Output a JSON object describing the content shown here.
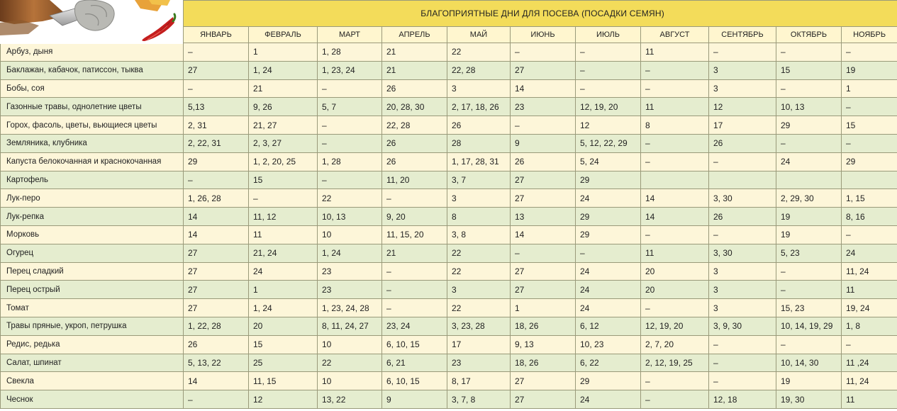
{
  "header": {
    "title": "БЛАГОПРИЯТНЫЕ ДНИ ДЛЯ ПОСЕВА (ПОСАДКИ СЕМЯН)",
    "months": [
      "ЯНВАРЬ",
      "ФЕВРАЛЬ",
      "МАРТ",
      "АПРЕЛЬ",
      "МАЙ",
      "ИЮНЬ",
      "ИЮЛЬ",
      "АВГУСТ",
      "СЕНТЯБРЬ",
      "ОКТЯБРЬ",
      "НОЯБРЬ"
    ]
  },
  "rows": [
    {
      "name": "Арбуз, дыня",
      "days": [
        "–",
        "1",
        "1, 28",
        "21",
        "22",
        "–",
        "–",
        "11",
        "–",
        "–",
        "–"
      ]
    },
    {
      "name": "Баклажан, кабачок, патиссон, тыква",
      "days": [
        "27",
        "1, 24",
        "1, 23, 24",
        "21",
        "22, 28",
        "27",
        "–",
        "–",
        "3",
        "15",
        "19"
      ]
    },
    {
      "name": "Бобы, соя",
      "days": [
        "–",
        "21",
        "–",
        "26",
        "3",
        "14",
        "–",
        "–",
        "3",
        "–",
        "1"
      ]
    },
    {
      "name": "Газонные травы, однолетние цветы",
      "days": [
        "5,13",
        "9, 26",
        "5, 7",
        "20, 28, 30",
        "2, 17, 18, 26",
        "23",
        "12, 19, 20",
        "11",
        "12",
        "10, 13",
        "–"
      ]
    },
    {
      "name": "Горох, фасоль, цветы, вьющиеся цветы",
      "days": [
        "2, 31",
        "21, 27",
        "–",
        "22, 28",
        "26",
        "–",
        "12",
        "8",
        "17",
        "29",
        "15"
      ]
    },
    {
      "name": "Земляника, клубника",
      "days": [
        "2, 22, 31",
        "2, 3, 27",
        "–",
        "26",
        "28",
        "9",
        "5, 12, 22, 29",
        "–",
        "26",
        "–",
        "–"
      ]
    },
    {
      "name": "Капуста белокочанная и краснокочанная",
      "days": [
        "29",
        "1, 2, 20, 25",
        "1, 28",
        "26",
        "1, 17, 28, 31",
        "26",
        "5, 24",
        "–",
        "–",
        "24",
        "29"
      ]
    },
    {
      "name": "Картофель",
      "days": [
        "–",
        "15",
        "–",
        "11, 20",
        "3, 7",
        "27",
        "29",
        "",
        "",
        "",
        ""
      ]
    },
    {
      "name": "Лук-перо",
      "days": [
        "1, 26, 28",
        "–",
        "22",
        "–",
        "3",
        "27",
        "24",
        "14",
        "3, 30",
        "2, 29, 30",
        "1, 15"
      ]
    },
    {
      "name": "Лук-репка",
      "days": [
        "14",
        "11, 12",
        "10, 13",
        "9, 20",
        "8",
        "13",
        "29",
        "14",
        "26",
        "19",
        "8, 16"
      ]
    },
    {
      "name": "Морковь",
      "days": [
        "14",
        "11",
        "10",
        "11, 15, 20",
        "3, 8",
        "14",
        "29",
        "–",
        "–",
        "19",
        "–"
      ]
    },
    {
      "name": "Огурец",
      "days": [
        "27",
        "21, 24",
        "1, 24",
        "21",
        "22",
        "–",
        "–",
        "11",
        "3, 30",
        "5, 23",
        "24"
      ]
    },
    {
      "name": "Перец сладкий",
      "days": [
        "27",
        "24",
        "23",
        "–",
        "22",
        "27",
        "24",
        "20",
        "3",
        "–",
        "11, 24"
      ]
    },
    {
      "name": "Перец острый",
      "days": [
        "27",
        "1",
        "23",
        "–",
        "3",
        "27",
        "24",
        "20",
        "3",
        "–",
        "11"
      ]
    },
    {
      "name": "Томат",
      "days": [
        "27",
        "1, 24",
        "1, 23, 24, 28",
        "–",
        "22",
        "1",
        "24",
        "–",
        "3",
        "15, 23",
        "19, 24"
      ]
    },
    {
      "name": "Травы пряные, укроп, петрушка",
      "days": [
        "1, 22, 28",
        "20",
        "8, 11, 24, 27",
        "23, 24",
        "3, 23, 28",
        "18, 26",
        "6, 12",
        "12, 19, 20",
        "3, 9, 30",
        "10, 14, 19, 29",
        "1, 8"
      ]
    },
    {
      "name": "Редис, редька",
      "days": [
        "26",
        "15",
        "10",
        "6, 10, 15",
        "17",
        "9, 13",
        "10, 23",
        "2, 7, 20",
        "–",
        "–",
        "–"
      ]
    },
    {
      "name": "Салат, шпинат",
      "days": [
        "5, 13, 22",
        "25",
        "22",
        "6, 21",
        "23",
        "18, 26",
        "6, 22",
        "2, 12, 19, 25",
        "–",
        "10, 14, 30",
        "11 ,24"
      ]
    },
    {
      "name": "Свекла",
      "days": [
        "14",
        "11, 15",
        "10",
        "6, 10, 15",
        "8, 17",
        "27",
        "29",
        "–",
        "–",
        "19",
        "11, 24"
      ]
    },
    {
      "name": "Чеснок",
      "days": [
        "–",
        "12",
        "13, 22",
        "9",
        "3, 7, 8",
        "27",
        "24",
        "–",
        "12, 18",
        "19, 30",
        "11"
      ]
    }
  ],
  "colors": {
    "title_bg": "#f3dc5a",
    "month_bg": "#fff6cf",
    "row_odd": "#fdf6d9",
    "row_even": "#e5edcf",
    "border": "#9a9a7a"
  },
  "decor": [
    "garden-tools-illustration-icon",
    "gloves-icon",
    "pepper-icon"
  ]
}
